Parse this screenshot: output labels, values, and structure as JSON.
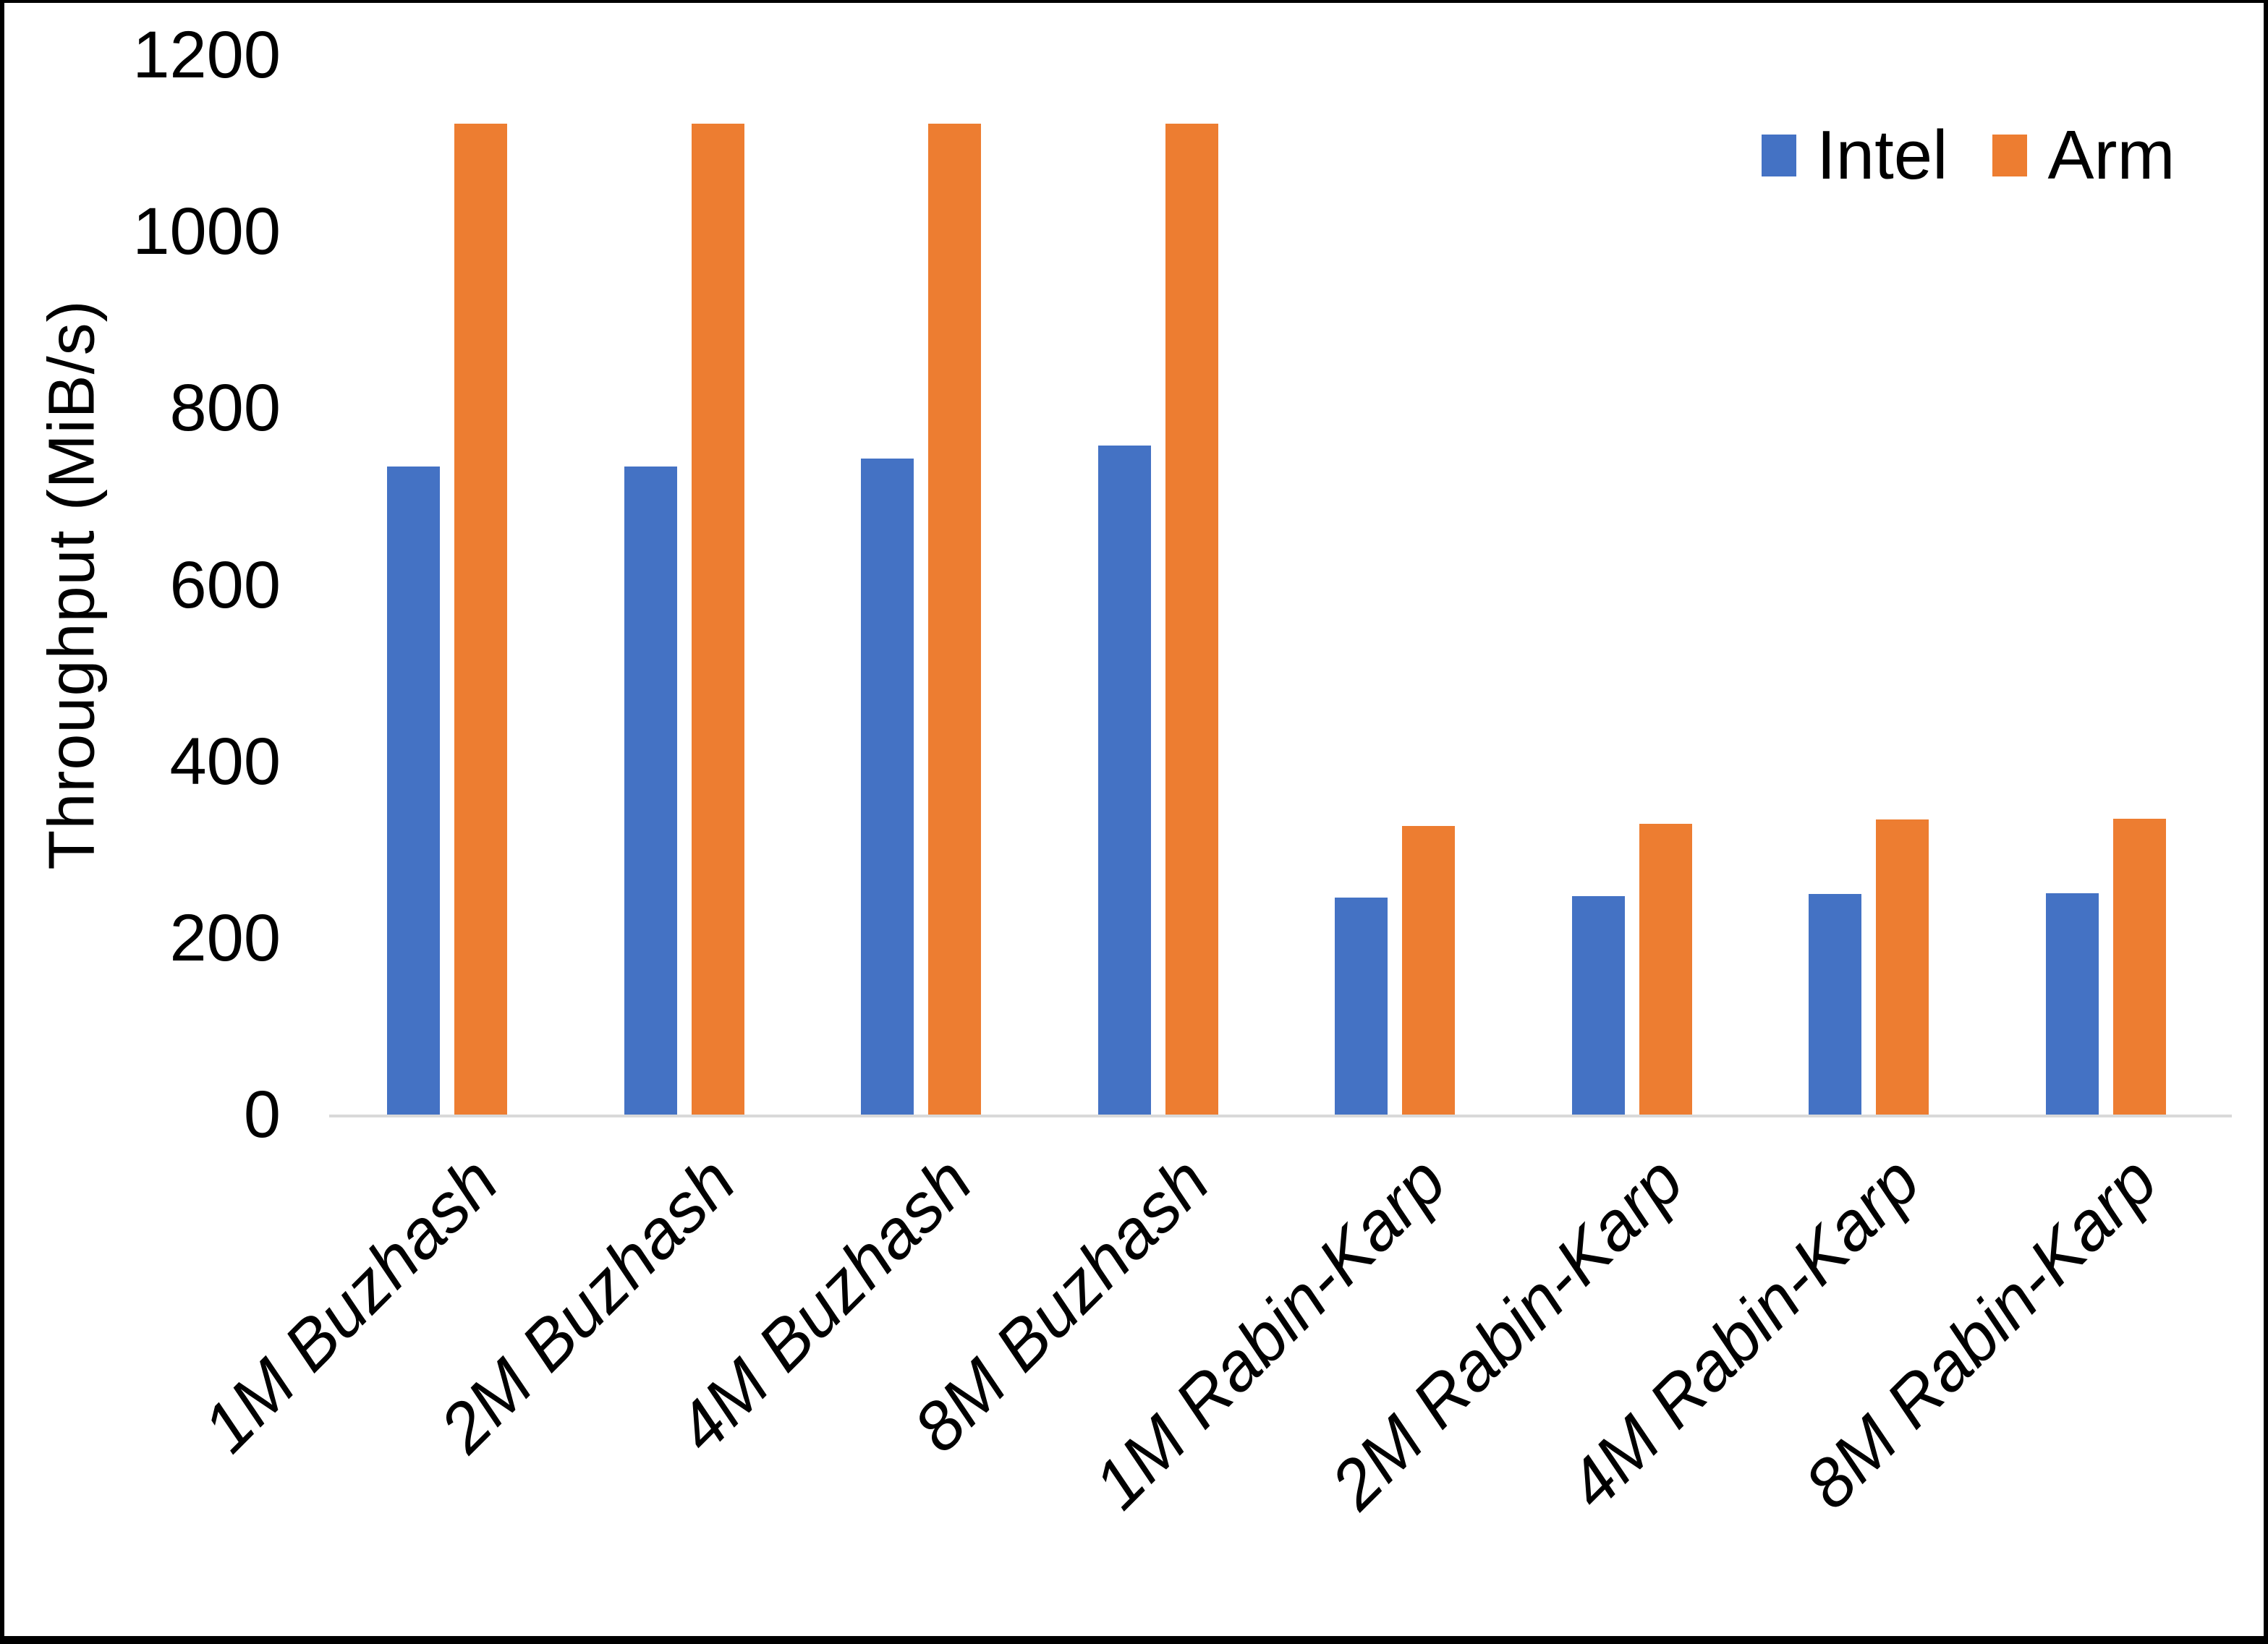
{
  "chart_data": {
    "type": "bar",
    "title": "",
    "ylabel": "Throughput (MiB/s)",
    "xlabel": "",
    "categories": [
      "1M Buzhash",
      "2M Buzhash",
      "4M Buzhash",
      "8M Buzhash",
      "1M Rabin-Karp",
      "2M Rabin-Karp",
      "4M Rabin-Karp",
      "8M Rabin-Karp"
    ],
    "series": [
      {
        "name": "Intel",
        "color": "#4472C4",
        "values": [
          734,
          734,
          743,
          758,
          246,
          247,
          250,
          251
        ]
      },
      {
        "name": "Arm",
        "color": "#ED7D31",
        "values": [
          1122,
          1122,
          1122,
          1122,
          327,
          329,
          334,
          335
        ]
      }
    ],
    "ylim": [
      0,
      1200
    ],
    "yticks": [
      0,
      200,
      400,
      600,
      800,
      1000,
      1200
    ],
    "grid": false,
    "legend_position": "top-right",
    "axis_line_color": "#D9D9D9",
    "text_color": "#000000"
  }
}
